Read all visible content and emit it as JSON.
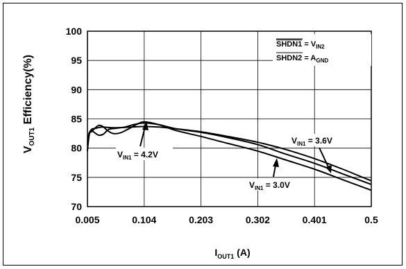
{
  "chart_data": {
    "type": "line",
    "title": "",
    "x_ticks": [
      "0.005",
      "0.104",
      "0.203",
      "0.302",
      "0.401",
      "0.5"
    ],
    "y_ticks": [
      "70",
      "75",
      "80",
      "85",
      "90",
      "95",
      "100"
    ],
    "xlim": [
      0.005,
      0.5
    ],
    "ylim": [
      70,
      100
    ],
    "grid": true,
    "xlabel": {
      "main": "I",
      "sub": "OUT1",
      "rest": " (A)"
    },
    "ylabel": {
      "main": "V",
      "sub": "OUT1",
      "rest": " Efficiency(%)"
    },
    "legend": {
      "line1": {
        "left": "SHDN1",
        "eq": " = V",
        "sub": "IN2"
      },
      "line2": {
        "left": "SHDN2",
        "eq": " = A",
        "sub": "GND"
      }
    },
    "series": [
      {
        "label": {
          "main": "V",
          "sub": "IN1",
          "rest": " = 4.2V"
        },
        "x": [
          0.005,
          0.008,
          0.012,
          0.02,
          0.03,
          0.045,
          0.06,
          0.08,
          0.104,
          0.13,
          0.16,
          0.203,
          0.25,
          0.302,
          0.35,
          0.401,
          0.45,
          0.5
        ],
        "y": [
          79.5,
          82.2,
          83.2,
          83.4,
          83.6,
          83.5,
          83.5,
          83.6,
          83.7,
          83.6,
          83.3,
          82.8,
          82.0,
          81.0,
          79.8,
          78.2,
          76.4,
          74.4
        ]
      },
      {
        "label": {
          "main": "V",
          "sub": "IN1",
          "rest": " = 3.6V"
        },
        "x": [
          0.005,
          0.008,
          0.012,
          0.018,
          0.025,
          0.033,
          0.042,
          0.055,
          0.07,
          0.085,
          0.104,
          0.13,
          0.16,
          0.203,
          0.25,
          0.302,
          0.35,
          0.401,
          0.45,
          0.5
        ],
        "y": [
          80.5,
          82.5,
          83.0,
          82.6,
          82.2,
          82.4,
          83.2,
          83.4,
          83.6,
          84.0,
          84.3,
          84.0,
          83.3,
          82.7,
          81.8,
          80.6,
          79.0,
          77.4,
          75.6,
          73.8
        ]
      },
      {
        "label": {
          "main": "V",
          "sub": "IN1",
          "rest": " = 3.0V"
        },
        "x": [
          0.005,
          0.008,
          0.012,
          0.018,
          0.025,
          0.032,
          0.04,
          0.05,
          0.062,
          0.075,
          0.09,
          0.104,
          0.13,
          0.16,
          0.203,
          0.25,
          0.302,
          0.35,
          0.401,
          0.45,
          0.5
        ],
        "y": [
          81.0,
          82.6,
          82.8,
          83.4,
          83.9,
          83.7,
          83.0,
          82.5,
          82.6,
          83.2,
          84.0,
          84.5,
          84.0,
          83.0,
          82.0,
          80.8,
          79.5,
          78.0,
          76.4,
          74.6,
          72.8
        ]
      }
    ]
  }
}
